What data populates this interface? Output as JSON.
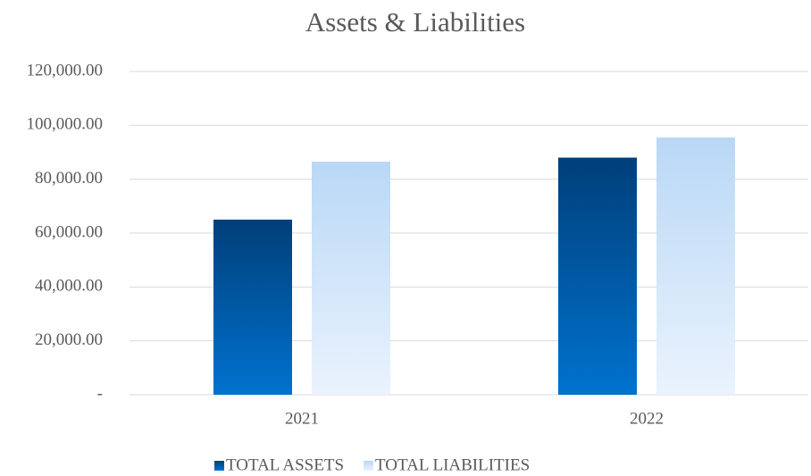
{
  "chart_data": {
    "type": "bar",
    "title": "Assets & Liabilities",
    "categories": [
      "2021",
      "2022"
    ],
    "series": [
      {
        "name": "TOTAL ASSETS",
        "color": "#003f7a",
        "values": [
          65000,
          88000
        ]
      },
      {
        "name": "TOTAL LIABILITIES",
        "color": "#b9d8f6",
        "values": [
          86500,
          95500
        ]
      }
    ],
    "ylim": [
      0,
      120000
    ],
    "yticks": [
      {
        "value": 0,
        "label": "-"
      },
      {
        "value": 20000,
        "label": "20,000.00"
      },
      {
        "value": 40000,
        "label": "40,000.00"
      },
      {
        "value": 60000,
        "label": "60,000.00"
      },
      {
        "value": 80000,
        "label": "80,000.00"
      },
      {
        "value": 100000,
        "label": "100,000.00"
      },
      {
        "value": 120000,
        "label": "120,000.00"
      }
    ],
    "grid": true,
    "legend": "bottom"
  }
}
